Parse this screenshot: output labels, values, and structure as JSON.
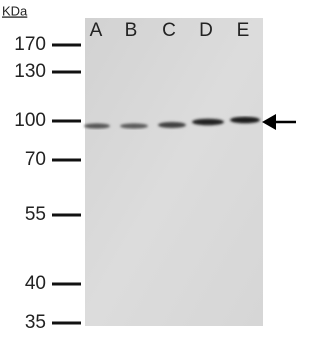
{
  "unit_label": "KDa",
  "markers": [
    "170",
    "130",
    "100",
    "70",
    "55",
    "40",
    "35"
  ],
  "lanes": [
    "A",
    "B",
    "C",
    "D",
    "E"
  ]
}
